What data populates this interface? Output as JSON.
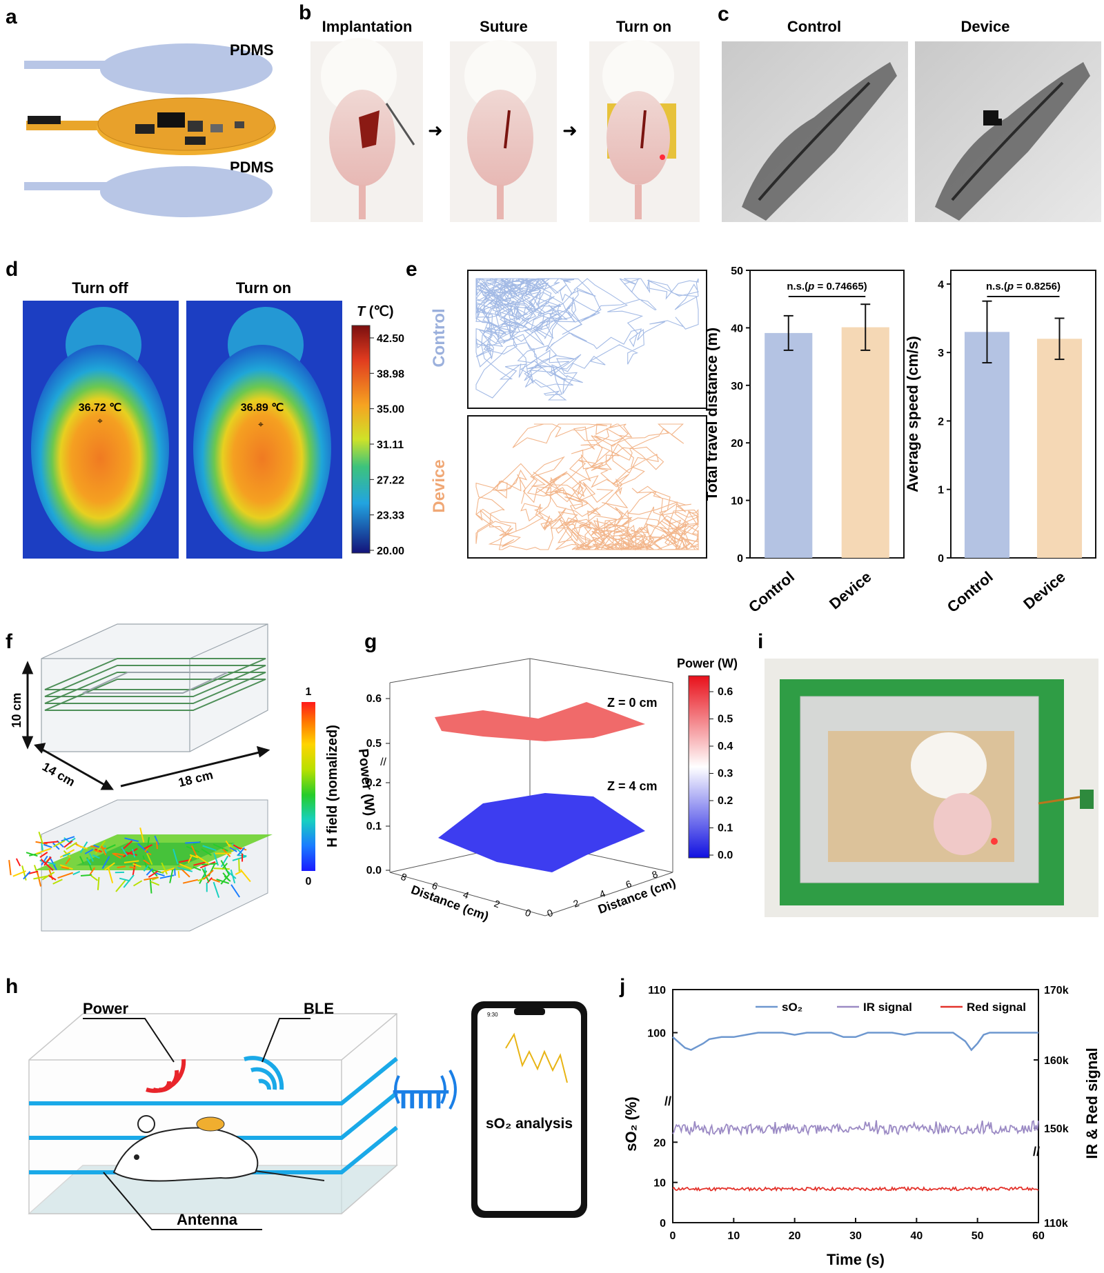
{
  "panels": {
    "a": {
      "letter": "a",
      "layer_top": "PDMS",
      "layer_bottom": "PDMS"
    },
    "b": {
      "letter": "b",
      "steps": [
        "Implantation",
        "Suture",
        "Turn on"
      ]
    },
    "c": {
      "letter": "c",
      "titles": [
        "Control",
        "Device"
      ]
    },
    "d": {
      "letter": "d",
      "titles": [
        "Turn off",
        "Turn on"
      ],
      "spot_off": "36.72 ℃",
      "spot_on": "36.89 ℃",
      "scale_title_T": "T",
      "scale_title_unit": " (℃)",
      "scale_ticks": [
        "42.50",
        "38.98",
        "35.00",
        "31.11",
        "27.22",
        "23.33",
        "20.00"
      ]
    },
    "e": {
      "letter": "e",
      "track_labels": [
        "Control",
        "Device"
      ]
    },
    "f": {
      "letter": "f",
      "dim_height": "10 cm",
      "dim_depth": "14 cm",
      "dim_width": "18 cm",
      "scale_label": "H field (nomalized)",
      "scale_max": "1",
      "scale_min": "0"
    },
    "g": {
      "letter": "g",
      "zlabel": "Power (W)",
      "xlabel": "Distance (cm)",
      "ylabel": "Distance (cm)",
      "z0_label": "Z = 0 cm",
      "z4_label": "Z = 4 cm",
      "ztick": [
        "0.0",
        "0.1",
        "0.2",
        "0.5",
        "0.6"
      ],
      "xtick": [
        "0",
        "2",
        "4",
        "6",
        "8"
      ],
      "ytick": [
        "0",
        "2",
        "4",
        "6",
        "8"
      ],
      "cbar_title": "Power (W)",
      "cbar_ticks": [
        "0.6",
        "0.5",
        "0.4",
        "0.3",
        "0.2",
        "0.1",
        "0.0"
      ]
    },
    "h": {
      "letter": "h",
      "power": "Power",
      "ble": "BLE",
      "antenna": "Antenna",
      "phone_label": "sO₂ analysis",
      "phone_time": "9:30"
    },
    "i": {
      "letter": "i"
    },
    "j": {
      "letter": "j"
    }
  },
  "chart_data": [
    {
      "type": "bar",
      "panel": "e-left",
      "categories": [
        "Control",
        "Device"
      ],
      "values": [
        39.1,
        40.1
      ],
      "errors": [
        3.0,
        4.0
      ],
      "ylabel": "Total travel distance (m)",
      "ylim": [
        0,
        50
      ],
      "yticks": [
        "0",
        "10",
        "20",
        "30",
        "40",
        "50"
      ],
      "annotation": "n.s.(p = 0.74665)",
      "colors": [
        "#b4c3e3",
        "#f5d8b5"
      ]
    },
    {
      "type": "bar",
      "panel": "e-right",
      "categories": [
        "Control",
        "Device"
      ],
      "values": [
        3.3,
        3.2
      ],
      "errors": [
        0.45,
        0.3
      ],
      "ylabel": "Average speed (cm/s)",
      "ylim": [
        0,
        4.2
      ],
      "yticks": [
        "0",
        "1",
        "2",
        "3",
        "4"
      ],
      "annotation": "n.s.(p = 0.8256)",
      "colors": [
        "#b4c3e3",
        "#f5d8b5"
      ]
    },
    {
      "type": "line",
      "panel": "j",
      "xlabel": "Time (s)",
      "ylabel_left": "sO₂ (%)",
      "ylabel_right": "IR & Red signal",
      "xlim": [
        0,
        60
      ],
      "xticks": [
        "0",
        "10",
        "20",
        "30",
        "40",
        "50",
        "60"
      ],
      "yticks_left": [
        "0",
        "10",
        "20",
        "100",
        "110"
      ],
      "yticks_right": [
        "110k",
        "150k",
        "160k",
        "170k"
      ],
      "legend": [
        "sO₂",
        "IR signal",
        "Red signal"
      ],
      "colors": [
        "#6d97cf",
        "#9b8ac4",
        "#e3322b"
      ],
      "series": [
        {
          "name": "sO₂",
          "x": [
            0,
            2,
            3,
            5,
            6,
            8,
            10,
            12,
            14,
            16,
            18,
            20,
            22,
            24,
            26,
            28,
            30,
            32,
            34,
            36,
            38,
            40,
            42,
            44,
            46,
            48,
            49,
            50,
            51,
            52,
            54,
            56,
            58,
            60
          ],
          "values": [
            99,
            96.5,
            96,
            97.5,
            98.5,
            99,
            99,
            99.5,
            100,
            100,
            100,
            99.5,
            100,
            100,
            100,
            99,
            99,
            100,
            100,
            100,
            99.5,
            100,
            100,
            100,
            100,
            98,
            96,
            97.5,
            99.5,
            100,
            100,
            100,
            100,
            100
          ]
        },
        {
          "name": "IR signal",
          "mean": 149800,
          "noise": 700
        },
        {
          "name": "Red signal",
          "mean": 8.4,
          "noise": 0.4
        }
      ]
    }
  ]
}
